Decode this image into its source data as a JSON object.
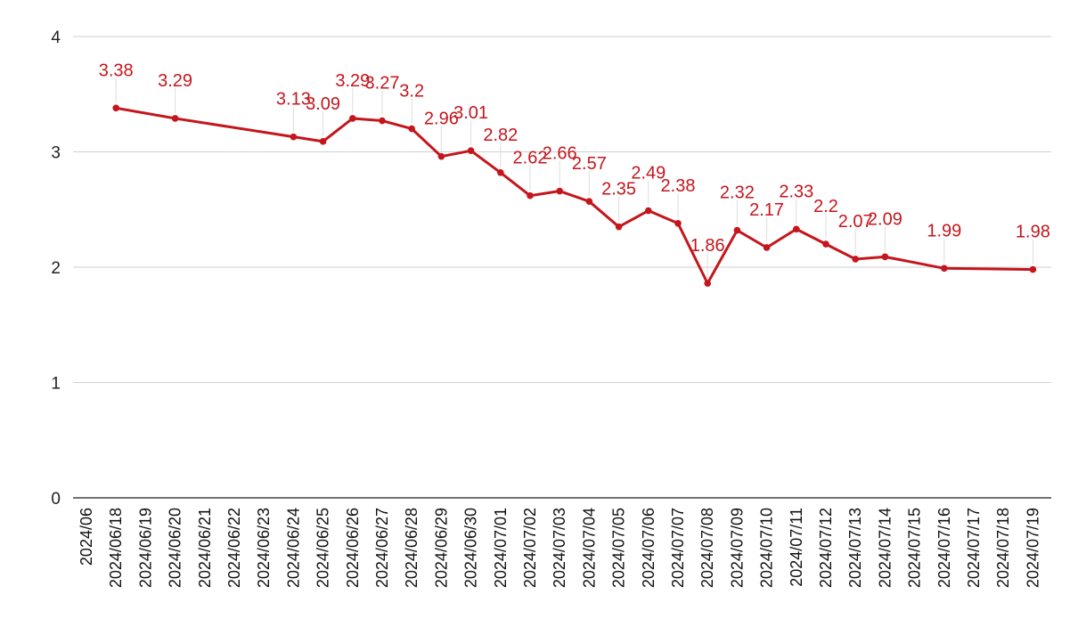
{
  "chart_data": {
    "type": "line",
    "title": "",
    "xlabel": "",
    "ylabel": "",
    "ylim": [
      0,
      4
    ],
    "yticks": [
      0,
      1,
      2,
      3,
      4
    ],
    "grid": true,
    "legend": "none",
    "x_tick_labels": [
      "2024/06",
      "2024/06/18",
      "2024/06/19",
      "2024/06/20",
      "2024/06/21",
      "2024/06/22",
      "2024/06/23",
      "2024/06/24",
      "2024/06/25",
      "2024/06/26",
      "2024/06/27",
      "2024/06/28",
      "2024/06/29",
      "2024/06/30",
      "2024/07/01",
      "2024/07/02",
      "2024/07/03",
      "2024/07/04",
      "2024/07/05",
      "2024/07/06",
      "2024/07/07",
      "2024/07/08",
      "2024/07/09",
      "2024/07/10",
      "2024/07/11",
      "2024/07/12",
      "2024/07/13",
      "2024/07/14",
      "2024/07/15",
      "2024/07/16",
      "2024/07/17",
      "2024/07/18",
      "2024/07/19"
    ],
    "series": [
      {
        "color": "#c4161c",
        "points": [
          {
            "x": "2024/06/18",
            "y": 3.38
          },
          {
            "x": "2024/06/20",
            "y": 3.29
          },
          {
            "x": "2024/06/24",
            "y": 3.13
          },
          {
            "x": "2024/06/25",
            "y": 3.09
          },
          {
            "x": "2024/06/26",
            "y": 3.29
          },
          {
            "x": "2024/06/27",
            "y": 3.27
          },
          {
            "x": "2024/06/28",
            "y": 3.2
          },
          {
            "x": "2024/06/29",
            "y": 2.96
          },
          {
            "x": "2024/06/30",
            "y": 3.01
          },
          {
            "x": "2024/07/01",
            "y": 2.82
          },
          {
            "x": "2024/07/02",
            "y": 2.62
          },
          {
            "x": "2024/07/03",
            "y": 2.66
          },
          {
            "x": "2024/07/04",
            "y": 2.57
          },
          {
            "x": "2024/07/05",
            "y": 2.35
          },
          {
            "x": "2024/07/06",
            "y": 2.49
          },
          {
            "x": "2024/07/07",
            "y": 2.38
          },
          {
            "x": "2024/07/08",
            "y": 1.86
          },
          {
            "x": "2024/07/09",
            "y": 2.32
          },
          {
            "x": "2024/07/10",
            "y": 2.17
          },
          {
            "x": "2024/07/11",
            "y": 2.33
          },
          {
            "x": "2024/07/12",
            "y": 2.2
          },
          {
            "x": "2024/07/13",
            "y": 2.07
          },
          {
            "x": "2024/07/14",
            "y": 2.09
          },
          {
            "x": "2024/07/16",
            "y": 1.99
          },
          {
            "x": "2024/07/19",
            "y": 1.98
          }
        ]
      }
    ],
    "data_labels": [
      "3.38",
      "3.29",
      "3.13",
      "3.09",
      "3.29",
      "3.27",
      "3.2",
      "2.96",
      "3.01",
      "2.82",
      "2.62",
      "2.66",
      "2.57",
      "2.35",
      "2.49",
      "2.38",
      "1.86",
      "2.32",
      "2.17",
      "2.33",
      "2.2",
      "2.07",
      "2.09",
      "1.99",
      "1.98"
    ]
  }
}
